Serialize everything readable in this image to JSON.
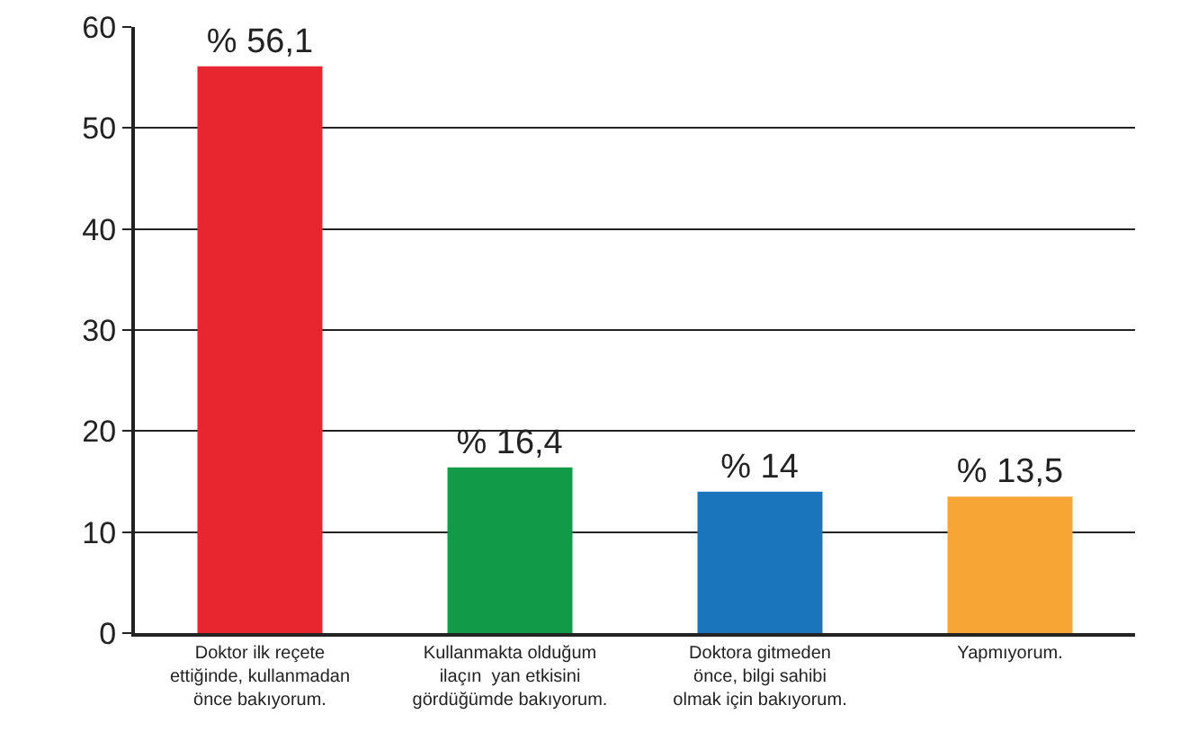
{
  "chart_data": {
    "type": "bar",
    "categories": [
      "Doktor ilk reçete\nettiğinde, kullanmadan\nönce bakıyorum.",
      "Kullanmakta olduğum\nilaçın  yan etkisini\ngördüğümde bakıyorum.",
      "Doktora gitmeden\nönce, bilgi sahibi\nolmak için bakıyorum.",
      "Yapmıyorum."
    ],
    "values": [
      56.1,
      16.4,
      14,
      13.5
    ],
    "colors": [
      "#e8262f",
      "#119a48",
      "#1b75bc",
      "#f7a535"
    ],
    "value_labels": [
      "% 56,1",
      "% 16,4",
      "% 14",
      "% 13,5"
    ],
    "ylim": [
      0,
      60
    ],
    "yticks": [
      0,
      10,
      20,
      30,
      40,
      50,
      60
    ],
    "grid": "y"
  }
}
